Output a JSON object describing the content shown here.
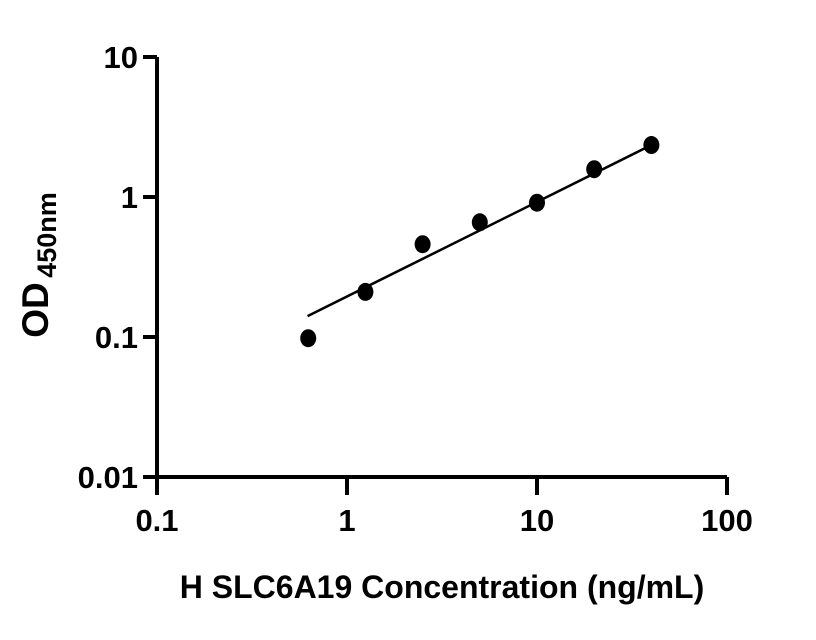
{
  "figure": {
    "background_color": "#ffffff",
    "foreground_color": "#000000"
  },
  "chart_data": {
    "type": "scatter",
    "title": "",
    "xlabel": "H SLC6A19 Concentration (ng/mL)",
    "ylabel": "OD450nm",
    "ylabel_main": "OD",
    "ylabel_sub": "450nm",
    "x_scale": "log",
    "y_scale": "log",
    "xlim": [
      0.1,
      100
    ],
    "ylim": [
      0.01,
      10
    ],
    "grid": false,
    "legend_position": "none",
    "x_ticks": [
      {
        "value": 0.1,
        "label": "0.1"
      },
      {
        "value": 1,
        "label": "1"
      },
      {
        "value": 10,
        "label": "10"
      },
      {
        "value": 100,
        "label": "100"
      }
    ],
    "y_ticks": [
      {
        "value": 10,
        "label": "10"
      },
      {
        "value": 1,
        "label": "1"
      },
      {
        "value": 0.1,
        "label": "0.1"
      },
      {
        "value": 0.01,
        "label": "0.01"
      }
    ],
    "series": [
      {
        "name": "standard-curve-points",
        "marker": "filled-circle",
        "marker_color": "#000000",
        "points": [
          {
            "x": 0.625,
            "y": 0.098
          },
          {
            "x": 1.25,
            "y": 0.21
          },
          {
            "x": 2.5,
            "y": 0.46
          },
          {
            "x": 5,
            "y": 0.66
          },
          {
            "x": 10,
            "y": 0.91
          },
          {
            "x": 20,
            "y": 1.58
          },
          {
            "x": 40,
            "y": 2.35
          }
        ]
      }
    ],
    "fit_line": {
      "x1": 0.62,
      "y1": 0.141,
      "x2": 40,
      "y2": 2.35,
      "color": "#000000"
    },
    "axis_color": "#000000"
  }
}
